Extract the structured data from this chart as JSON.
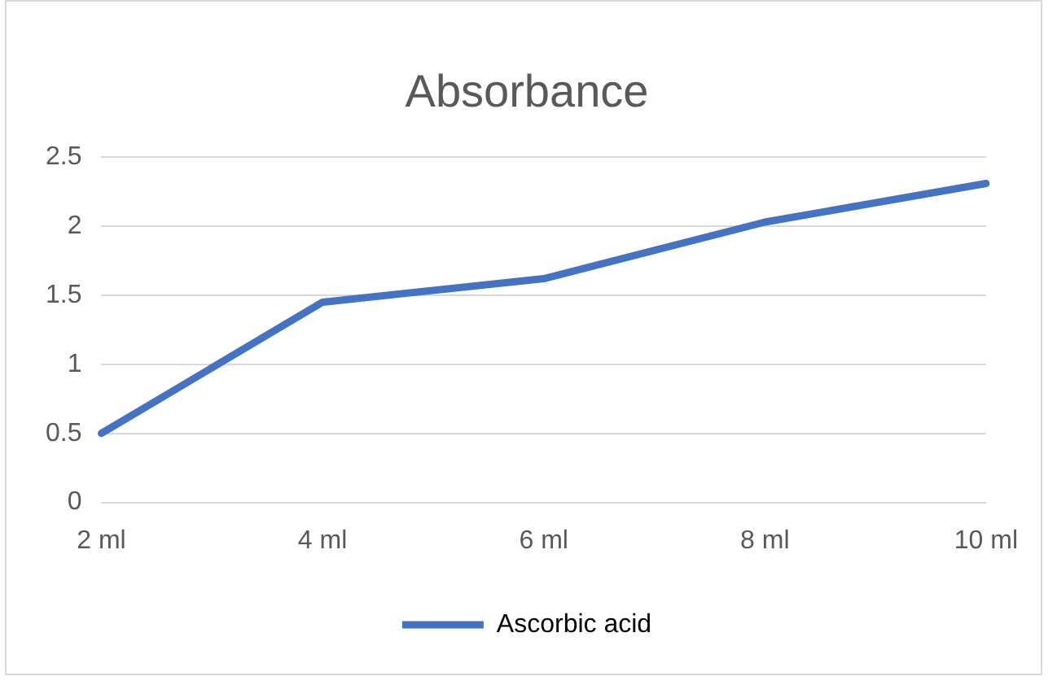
{
  "chart_data": {
    "type": "line",
    "title": "Absorbance",
    "categories": [
      "2 ml",
      "4 ml",
      "6 ml",
      "8 ml",
      "10 ml"
    ],
    "series": [
      {
        "name": "Ascorbic acid",
        "color": "#4472c4",
        "values": [
          0.5,
          1.45,
          1.62,
          2.03,
          2.31
        ]
      }
    ],
    "ylim": [
      0,
      2.5
    ],
    "yticks": [
      0,
      0.5,
      1,
      1.5,
      2,
      2.5
    ],
    "grid": "y",
    "legend": "bottom",
    "marker": "none",
    "line_style": "solid"
  }
}
